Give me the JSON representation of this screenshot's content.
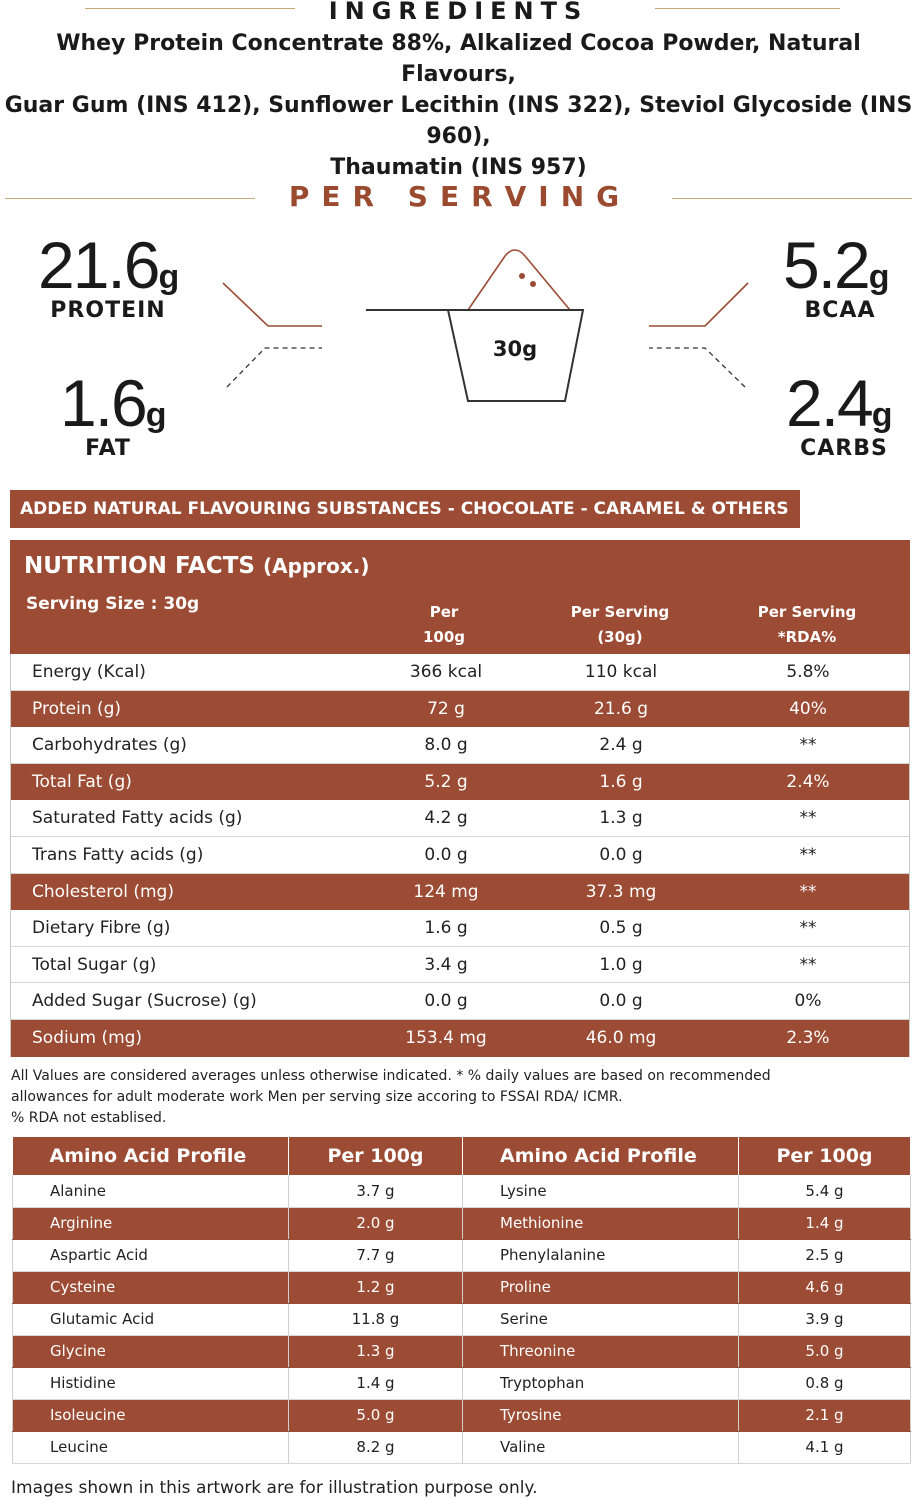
{
  "ingredients": {
    "title": "INGREDIENTS",
    "line1": "Whey Protein Concentrate 88%, Alkalized Cocoa Powder, Natural Flavours,",
    "line2": "Guar Gum (INS 412), Sunflower Lecithin (INS 322), Steviol Glycoside (INS 960),",
    "line3": "Thaumatin (INS 957)"
  },
  "per_serving": {
    "title": "PER SERVING",
    "scoop": "30g",
    "protein": {
      "value": "21.6",
      "unit": "g",
      "label": "PROTEIN"
    },
    "bcaa": {
      "value": "5.2",
      "unit": "g",
      "label": "BCAA"
    },
    "fat": {
      "value": "1.6",
      "unit": "g",
      "label": "FAT"
    },
    "carbs": {
      "value": "2.4",
      "unit": "g",
      "label": "CARBS"
    }
  },
  "banner": "ADDED NATURAL FLAVOURING SUBSTANCES - CHOCOLATE - CARAMEL & OTHERS",
  "nutrition": {
    "title": "NUTRITION FACTS",
    "title_suffix": "(Approx.)",
    "serving_size": "Serving Size : 30g",
    "col1_l1": "Per",
    "col1_l2": "100g",
    "col2_l1": "Per Serving",
    "col2_l2": "(30g)",
    "col3_l1": "Per Serving",
    "col3_l2": "*RDA%",
    "rows": [
      [
        "Energy (Kcal)",
        "366 kcal",
        "110 kcal",
        "5.8%"
      ],
      [
        "Protein (g)",
        "72 g",
        "21.6 g",
        "40%"
      ],
      [
        "Carbohydrates (g)",
        "8.0 g",
        "2.4 g",
        "**"
      ],
      [
        "Total Fat (g)",
        "5.2 g",
        "1.6 g",
        "2.4%"
      ],
      [
        "Saturated Fatty acids (g)",
        "4.2 g",
        "1.3 g",
        "**"
      ],
      [
        "Trans Fatty acids (g)",
        "0.0 g",
        "0.0 g",
        "**"
      ],
      [
        "Cholesterol (mg)",
        "124 mg",
        "37.3 mg",
        "**"
      ],
      [
        "Dietary Fibre (g)",
        "1.6 g",
        "0.5 g",
        "**"
      ],
      [
        "Total Sugar (g)",
        "3.4 g",
        "1.0 g",
        "**"
      ],
      [
        "Added Sugar (Sucrose) (g)",
        "0.0 g",
        "0.0 g",
        "0%"
      ],
      [
        "Sodium (mg)",
        "153.4 mg",
        "46.0 mg",
        "2.3%"
      ]
    ]
  },
  "footnote": {
    "line1": "All Values are considered averages unless otherwise indicated. * % daily values are based on recommended",
    "line2": "allowances for adult moderate work Men per serving size accoring to FSSAI RDA/ ICMR.",
    "line3": "% RDA not establised."
  },
  "amino": {
    "h1": "Amino Acid Profile",
    "h2": "Per 100g",
    "h3": "Amino Acid Profile",
    "h4": "Per 100g",
    "rows": [
      [
        "Alanine",
        "3.7 g",
        "Lysine",
        "5.4 g"
      ],
      [
        "Arginine",
        "2.0 g",
        "Methionine",
        "1.4 g"
      ],
      [
        "Aspartic Acid",
        "7.7 g",
        "Phenylalanine",
        "2.5 g"
      ],
      [
        "Cysteine",
        "1.2 g",
        "Proline",
        "4.6 g"
      ],
      [
        "Glutamic Acid",
        "11.8 g",
        "Serine",
        "3.9 g"
      ],
      [
        "Glycine",
        "1.3 g",
        "Threonine",
        "5.0 g"
      ],
      [
        "Histidine",
        "1.4 g",
        "Tryptophan",
        "0.8 g"
      ],
      [
        "Isoleucine",
        "5.0 g",
        "Tyrosine",
        "2.1 g"
      ],
      [
        "Leucine",
        "8.2 g",
        "Valine",
        "4.1 g"
      ]
    ]
  },
  "disclaimer": "Images shown in this artwork are for illustration purpose only.",
  "colors": {
    "accent": "#9c4b34",
    "gold": "#c9a877",
    "title_brown": "#9a4a2f"
  }
}
